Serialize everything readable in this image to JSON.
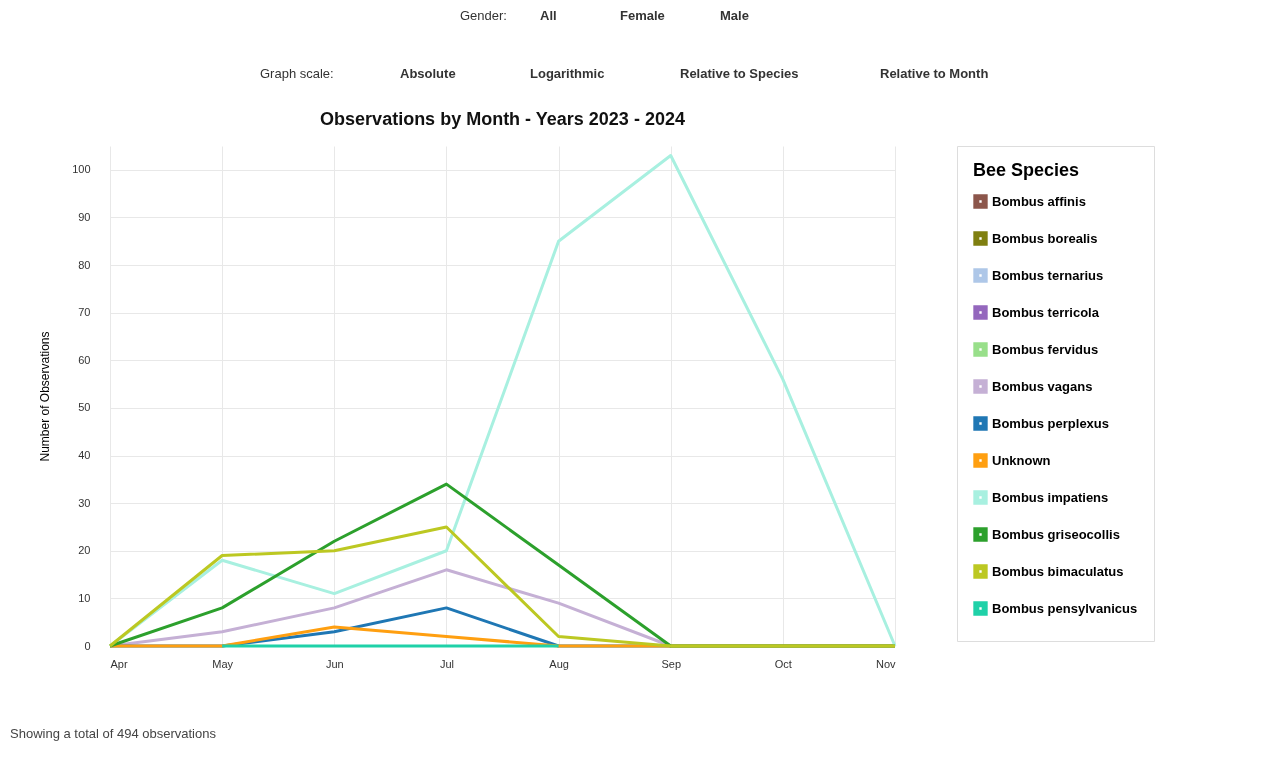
{
  "chart_data": {
    "type": "line",
    "title": "Observations by Month - Years 2023 - 2024",
    "ylabel": "Number of Observations",
    "legend_title": "Bee Species",
    "categories": [
      "Apr",
      "May",
      "Jun",
      "Jul",
      "Aug",
      "Sep",
      "Oct",
      "Nov"
    ],
    "series": [
      {
        "name": "Bombus affinis",
        "color": "#8c564b",
        "values": [
          null,
          null,
          null,
          null,
          null,
          null,
          null,
          null
        ]
      },
      {
        "name": "Bombus borealis",
        "color": "#7f7f10",
        "values": [
          null,
          null,
          null,
          null,
          null,
          null,
          null,
          null
        ]
      },
      {
        "name": "Bombus ternarius",
        "color": "#aec7e8",
        "values": [
          null,
          null,
          null,
          null,
          null,
          null,
          null,
          null
        ]
      },
      {
        "name": "Bombus terricola",
        "color": "#9467bd",
        "values": [
          null,
          null,
          null,
          null,
          null,
          null,
          null,
          null
        ]
      },
      {
        "name": "Bombus fervidus",
        "color": "#98df8a",
        "values": [
          null,
          null,
          null,
          null,
          null,
          null,
          null,
          null
        ]
      },
      {
        "name": "Bombus vagans",
        "color": "#c5b0d5",
        "values": [
          0,
          3,
          8,
          16,
          9,
          0,
          0,
          0
        ]
      },
      {
        "name": "Bombus perplexus",
        "color": "#1f77b4",
        "values": [
          0,
          0,
          3,
          8,
          0,
          0,
          null,
          null
        ]
      },
      {
        "name": "Unknown",
        "color": "#ff9f10",
        "values": [
          0,
          0,
          4,
          2,
          0,
          0,
          0,
          0
        ]
      },
      {
        "name": "Bombus impatiens",
        "color": "#a8f0e0",
        "values": [
          0,
          18,
          11,
          20,
          85,
          103,
          56,
          0
        ]
      },
      {
        "name": "Bombus griseocollis",
        "color": "#2ca02c",
        "values": [
          0,
          8,
          22,
          34,
          17,
          0,
          0,
          0
        ]
      },
      {
        "name": "Bombus bimaculatus",
        "color": "#bcc822",
        "values": [
          0,
          19,
          20,
          25,
          2,
          0,
          0,
          0
        ]
      },
      {
        "name": "Bombus pensylvanicus",
        "color": "#1fd1a8",
        "values": [
          null,
          0,
          0,
          0,
          0,
          null,
          null,
          null
        ]
      }
    ],
    "ylim": [
      0,
      105
    ],
    "yticks": [
      0,
      10,
      20,
      30,
      40,
      50,
      60,
      70,
      80,
      90,
      100
    ],
    "grid": true,
    "legend": "right",
    "marker": "none",
    "line_style": "solid",
    "annotations": [
      "Gender:",
      "All",
      "Female",
      "Male",
      "Graph scale:",
      "Absolute",
      "Logarithmic",
      "Relative to Species",
      "Relative to Month",
      "Showing a total of 494 observations"
    ]
  }
}
